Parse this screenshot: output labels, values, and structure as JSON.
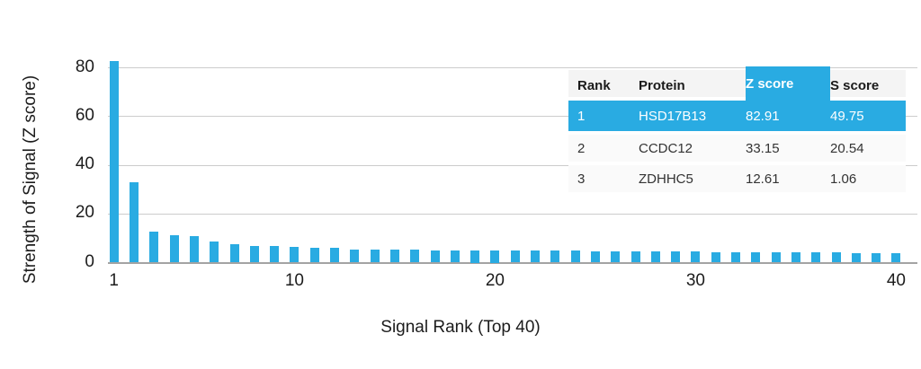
{
  "chart_data": {
    "type": "bar",
    "title": "",
    "xlabel": "Signal Rank (Top 40)",
    "ylabel": "Strength of Signal (Z score)",
    "x_ticks": [
      1,
      10,
      20,
      30,
      40
    ],
    "y_ticks": [
      0,
      20,
      40,
      60,
      80
    ],
    "ylim": [
      0,
      85
    ],
    "grid": "horizontal",
    "bar_color": "#29abe2",
    "x": [
      1,
      2,
      3,
      4,
      5,
      6,
      7,
      8,
      9,
      10,
      11,
      12,
      13,
      14,
      15,
      16,
      17,
      18,
      19,
      20,
      21,
      22,
      23,
      24,
      25,
      26,
      27,
      28,
      29,
      30,
      31,
      32,
      33,
      34,
      35,
      36,
      37,
      38,
      39,
      40
    ],
    "values": [
      82.91,
      33.15,
      12.61,
      11.3,
      10.9,
      8.8,
      7.7,
      7.0,
      6.8,
      6.3,
      5.9,
      5.9,
      5.5,
      5.4,
      5.3,
      5.2,
      5.1,
      5.1,
      5.0,
      5.0,
      4.9,
      4.9,
      4.8,
      4.8,
      4.7,
      4.7,
      4.6,
      4.6,
      4.5,
      4.5,
      4.4,
      4.4,
      4.3,
      4.3,
      4.2,
      4.2,
      4.1,
      4.0,
      4.0,
      3.9
    ]
  },
  "table": {
    "headers": {
      "rank": "Rank",
      "protein": "Protein",
      "z": "Z score",
      "s": "S score"
    },
    "highlighted_column": "Z score",
    "rows": [
      {
        "rank": "1",
        "protein": "HSD17B13",
        "z": "82.91",
        "s": "49.75",
        "highlighted": true
      },
      {
        "rank": "2",
        "protein": "CCDC12",
        "z": "33.15",
        "s": "20.54",
        "highlighted": false
      },
      {
        "rank": "3",
        "protein": "ZDHHC5",
        "z": "12.61",
        "s": "1.06",
        "highlighted": false
      }
    ]
  },
  "colors": {
    "accent_blue": "#29abe2",
    "gridline": "#cccccc",
    "header_bg": "#f4f4f4",
    "row_bg": "#fafafa"
  }
}
